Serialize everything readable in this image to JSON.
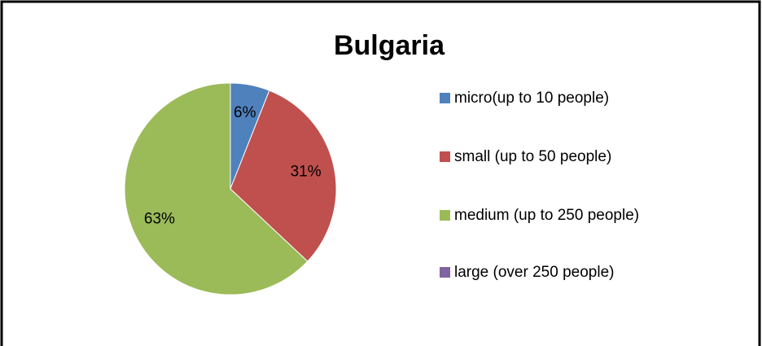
{
  "chart_data": {
    "type": "pie",
    "title": "Bulgaria",
    "categories": [
      "micro(up to 10 people)",
      "small (up to 50 people)",
      "medium (up to 250 people)",
      "large (over 250 people)"
    ],
    "values": [
      6,
      31,
      63,
      0
    ],
    "value_labels": [
      "6%",
      "31%",
      "63%",
      null
    ],
    "colors": [
      "#4f81bd",
      "#c0504d",
      "#9bbb59",
      "#8064a2"
    ],
    "legend": "right"
  }
}
